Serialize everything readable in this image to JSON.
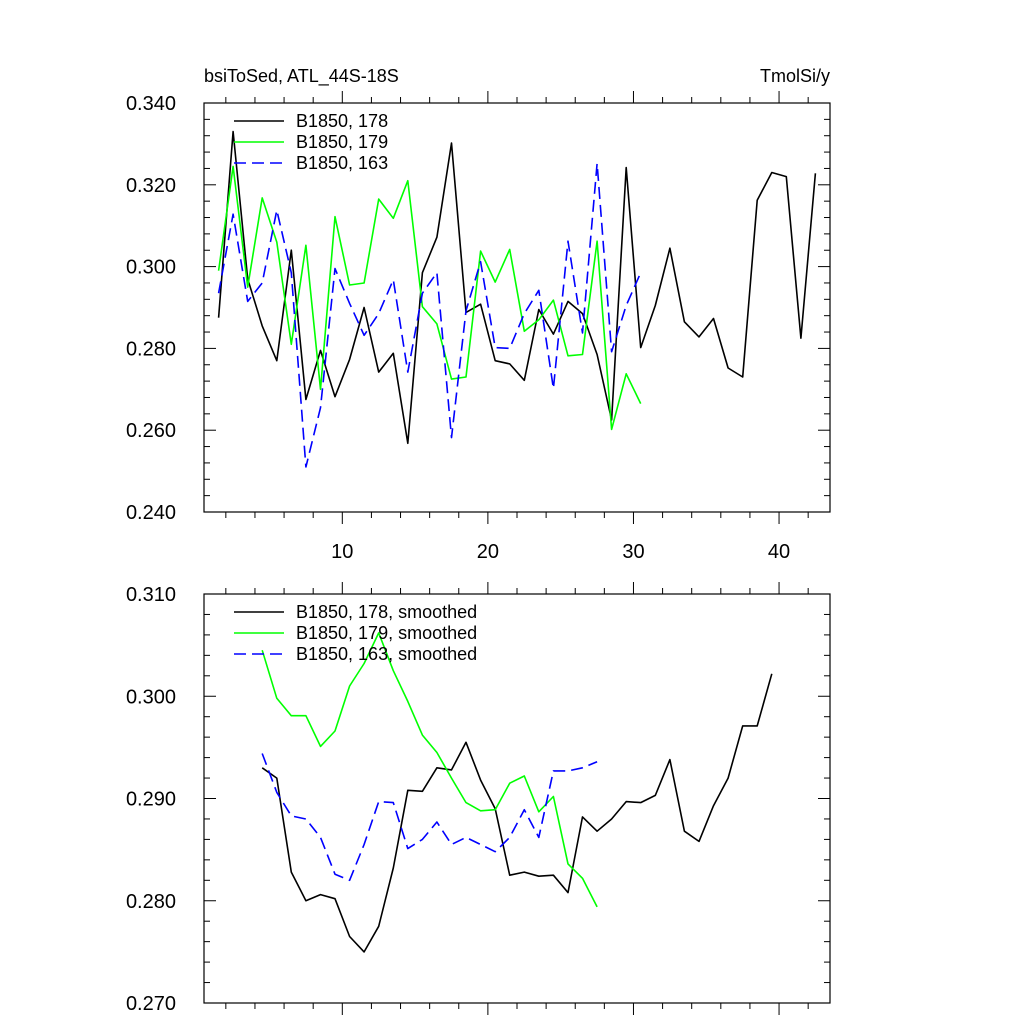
{
  "figure": {
    "title_left": "bsiToSed, ATL_44S-18S",
    "title_right": "TmolSi/y"
  },
  "chart_data": [
    {
      "type": "line",
      "xlim": [
        0.5,
        43.5
      ],
      "ylim": [
        0.24,
        0.34
      ],
      "xticks": [
        10,
        20,
        30,
        40
      ],
      "x_tick_labels": [
        "10",
        "20",
        "30",
        "40"
      ],
      "yticks": [
        0.24,
        0.26,
        0.28,
        0.3,
        0.32,
        0.34
      ],
      "y_tick_labels": [
        "0.240",
        "0.260",
        "0.280",
        "0.300",
        "0.320",
        "0.340"
      ],
      "legend_position": "top-left",
      "series": [
        {
          "name": "B1850, 178",
          "color": "#000000",
          "dash": "solid",
          "x": [
            1.5,
            2.5,
            3.5,
            4.5,
            5.5,
            6.5,
            7.5,
            8.5,
            9.5,
            10.5,
            11.5,
            12.5,
            13.5,
            14.5,
            15.5,
            16.5,
            17.5,
            18.5,
            19.5,
            20.5,
            21.5,
            22.5,
            23.5,
            24.5,
            25.5,
            26.5,
            27.5,
            28.5,
            29.5,
            30.5,
            31.5,
            32.5,
            33.5,
            34.5,
            35.5,
            36.5,
            37.5,
            38.5,
            39.5,
            40.5,
            41.5,
            42.5
          ],
          "values": [
            0.2875,
            0.333,
            0.297,
            0.2855,
            0.277,
            0.304,
            0.2675,
            0.2795,
            0.2682,
            0.2773,
            0.29,
            0.2742,
            0.2788,
            0.2568,
            0.2985,
            0.3072,
            0.3302,
            0.2888,
            0.2908,
            0.277,
            0.2762,
            0.2722,
            0.2895,
            0.2835,
            0.2915,
            0.2885,
            0.2785,
            0.2625,
            0.3242,
            0.2802,
            0.2905,
            0.3045,
            0.2865,
            0.2828,
            0.2873,
            0.2752,
            0.273,
            0.3162,
            0.323,
            0.322,
            0.2825,
            0.3228
          ]
        },
        {
          "name": "B1850, 179",
          "color": "#00ff00",
          "dash": "solid",
          "x": [
            1.5,
            2.5,
            3.5,
            4.5,
            5.5,
            6.5,
            7.5,
            8.5,
            9.5,
            10.5,
            11.5,
            12.5,
            13.5,
            14.5,
            15.5,
            16.5,
            17.5,
            18.5,
            19.5,
            20.5,
            21.5,
            22.5,
            23.5,
            24.5,
            25.5,
            26.5,
            27.5,
            28.5,
            29.5,
            30.5
          ],
          "values": [
            0.299,
            0.3245,
            0.295,
            0.3168,
            0.306,
            0.281,
            0.3052,
            0.27,
            0.3122,
            0.2955,
            0.296,
            0.3165,
            0.3118,
            0.321,
            0.2902,
            0.286,
            0.2725,
            0.273,
            0.3038,
            0.2962,
            0.3042,
            0.2842,
            0.287,
            0.2918,
            0.2782,
            0.2785,
            0.3062,
            0.2602,
            0.2738,
            0.2665
          ]
        },
        {
          "name": "B1850, 163",
          "color": "#0000ff",
          "dash": "dashed",
          "x": [
            1.5,
            2.5,
            3.5,
            4.5,
            5.5,
            6.5,
            7.5,
            8.5,
            9.5,
            10.5,
            11.5,
            12.5,
            13.5,
            14.5,
            15.5,
            16.5,
            17.5,
            18.5,
            19.5,
            20.5,
            21.5,
            22.5,
            23.5,
            24.5,
            25.5,
            26.5,
            27.5,
            28.5,
            29.5,
            30.5
          ],
          "values": [
            0.2935,
            0.3128,
            0.2915,
            0.296,
            0.3138,
            0.2985,
            0.251,
            0.2655,
            0.2995,
            0.291,
            0.2832,
            0.2885,
            0.2968,
            0.2742,
            0.2935,
            0.2985,
            0.2582,
            0.2892,
            0.3012,
            0.2802,
            0.28,
            0.2885,
            0.2942,
            0.2702,
            0.3062,
            0.2838,
            0.3252,
            0.2792,
            0.2905,
            0.2985
          ]
        }
      ]
    },
    {
      "type": "line",
      "xlim": [
        0.5,
        43.5
      ],
      "ylim": [
        0.27,
        0.31
      ],
      "xticks": [
        10,
        20,
        30,
        40
      ],
      "x_tick_labels": [],
      "yticks": [
        0.27,
        0.28,
        0.29,
        0.3,
        0.31
      ],
      "y_tick_labels": [
        "0.270",
        "0.280",
        "0.290",
        "0.300",
        "0.310"
      ],
      "legend_position": "top-left",
      "series": [
        {
          "name": "B1850, 178, smoothed",
          "color": "#000000",
          "dash": "solid",
          "x": [
            4.5,
            5.5,
            6.5,
            7.5,
            8.5,
            9.5,
            10.5,
            11.5,
            12.5,
            13.5,
            14.5,
            15.5,
            16.5,
            17.5,
            18.5,
            19.5,
            20.5,
            21.5,
            22.5,
            23.5,
            24.5,
            25.5,
            26.5,
            27.5,
            28.5,
            29.5,
            30.5,
            31.5,
            32.5,
            33.5,
            34.5,
            35.5,
            36.5,
            37.5,
            38.5,
            39.5
          ],
          "values": [
            0.293,
            0.292,
            0.2828,
            0.28,
            0.2806,
            0.2802,
            0.2765,
            0.275,
            0.2775,
            0.2832,
            0.2908,
            0.2907,
            0.293,
            0.2928,
            0.2955,
            0.2918,
            0.289,
            0.2825,
            0.2828,
            0.2824,
            0.2825,
            0.2808,
            0.2882,
            0.2868,
            0.288,
            0.2897,
            0.2896,
            0.2903,
            0.2938,
            0.2868,
            0.2858,
            0.2893,
            0.292,
            0.2971,
            0.2971,
            0.3022
          ]
        },
        {
          "name": "B1850, 179, smoothed",
          "color": "#00ff00",
          "dash": "solid",
          "x": [
            4.5,
            5.5,
            6.5,
            7.5,
            8.5,
            9.5,
            10.5,
            11.5,
            12.5,
            13.5,
            14.5,
            15.5,
            16.5,
            17.5,
            18.5,
            19.5,
            20.5,
            21.5,
            22.5,
            23.5,
            24.5,
            25.5,
            26.5,
            27.5
          ],
          "values": [
            0.3045,
            0.2998,
            0.2981,
            0.2981,
            0.2951,
            0.2966,
            0.301,
            0.3032,
            0.3062,
            0.3025,
            0.2995,
            0.2962,
            0.2945,
            0.292,
            0.2896,
            0.2888,
            0.2889,
            0.2915,
            0.2922,
            0.2887,
            0.2902,
            0.2836,
            0.2822,
            0.2794
          ]
        },
        {
          "name": "B1850, 163, smoothed",
          "color": "#0000ff",
          "dash": "dashed",
          "x": [
            4.5,
            5.5,
            6.5,
            7.5,
            8.5,
            9.5,
            10.5,
            11.5,
            12.5,
            13.5,
            14.5,
            15.5,
            16.5,
            17.5,
            18.5,
            19.5,
            20.5,
            21.5,
            22.5,
            23.5,
            24.5,
            25.5,
            26.5,
            27.5
          ],
          "values": [
            0.2944,
            0.2906,
            0.2883,
            0.288,
            0.2862,
            0.2826,
            0.282,
            0.2855,
            0.2897,
            0.2896,
            0.2851,
            0.286,
            0.2877,
            0.2855,
            0.2862,
            0.2855,
            0.2848,
            0.2862,
            0.2889,
            0.2862,
            0.2927,
            0.2927,
            0.293,
            0.2936
          ]
        }
      ]
    }
  ]
}
